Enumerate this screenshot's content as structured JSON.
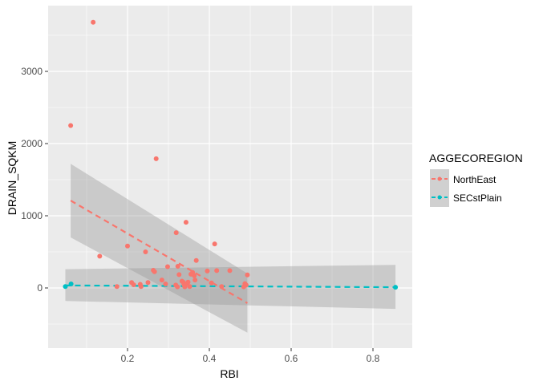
{
  "chart_data": {
    "type": "scatter",
    "title": "",
    "xlabel": "RBI",
    "ylabel": "DRAIN_SQKM",
    "xlim": [
      0.006,
      0.896
    ],
    "ylim": [
      -850,
      3900
    ],
    "x_ticks": [
      0.2,
      0.4,
      0.6,
      0.8
    ],
    "x_tick_labels": [
      "0.2",
      "0.4",
      "0.6",
      "0.8"
    ],
    "y_ticks": [
      0,
      1000,
      2000,
      3000
    ],
    "y_tick_labels": [
      "0",
      "1000",
      "2000",
      "3000"
    ],
    "grid": true,
    "legend": {
      "title": "AGGECOREGION",
      "position": "right",
      "entries": [
        {
          "label": "NorthEast",
          "color": "#F8766D"
        },
        {
          "label": "SECstPlain",
          "color": "#00BFC4"
        }
      ]
    },
    "series": [
      {
        "name": "NorthEast",
        "color": "#F8766D",
        "points": [
          [
            0.061,
            2250
          ],
          [
            0.116,
            3680
          ],
          [
            0.132,
            440
          ],
          [
            0.174,
            20
          ],
          [
            0.2,
            580
          ],
          [
            0.21,
            75
          ],
          [
            0.215,
            45
          ],
          [
            0.231,
            50
          ],
          [
            0.233,
            20
          ],
          [
            0.244,
            500
          ],
          [
            0.25,
            75
          ],
          [
            0.263,
            245
          ],
          [
            0.266,
            225
          ],
          [
            0.27,
            1790
          ],
          [
            0.284,
            110
          ],
          [
            0.293,
            55
          ],
          [
            0.298,
            295
          ],
          [
            0.318,
            40
          ],
          [
            0.319,
            765
          ],
          [
            0.322,
            15
          ],
          [
            0.323,
            300
          ],
          [
            0.326,
            185
          ],
          [
            0.333,
            95
          ],
          [
            0.336,
            80
          ],
          [
            0.338,
            45
          ],
          [
            0.34,
            15
          ],
          [
            0.343,
            910
          ],
          [
            0.345,
            60
          ],
          [
            0.348,
            80
          ],
          [
            0.352,
            20
          ],
          [
            0.355,
            190
          ],
          [
            0.359,
            215
          ],
          [
            0.363,
            170
          ],
          [
            0.365,
            110
          ],
          [
            0.368,
            380
          ],
          [
            0.395,
            235
          ],
          [
            0.405,
            70
          ],
          [
            0.413,
            610
          ],
          [
            0.418,
            240
          ],
          [
            0.43,
            20
          ],
          [
            0.45,
            240
          ],
          [
            0.484,
            15
          ],
          [
            0.487,
            60
          ],
          [
            0.49,
            40
          ],
          [
            0.493,
            180
          ]
        ],
        "fit": {
          "method": "lm",
          "x_range": [
            0.061,
            0.493
          ],
          "y_start": 1210,
          "y_end": -210,
          "ci_start": [
            700,
            1720
          ],
          "ci_end": [
            -620,
            200
          ]
        }
      },
      {
        "name": "SECstPlain",
        "color": "#00BFC4",
        "points": [
          [
            0.048,
            20
          ],
          [
            0.062,
            55
          ],
          [
            0.855,
            10
          ]
        ],
        "fit": {
          "method": "lm",
          "x_range": [
            0.048,
            0.855
          ],
          "y_start": 35,
          "y_end": 10,
          "ci_start": [
            -180,
            260
          ],
          "ci_end": [
            -290,
            320
          ]
        }
      }
    ]
  }
}
